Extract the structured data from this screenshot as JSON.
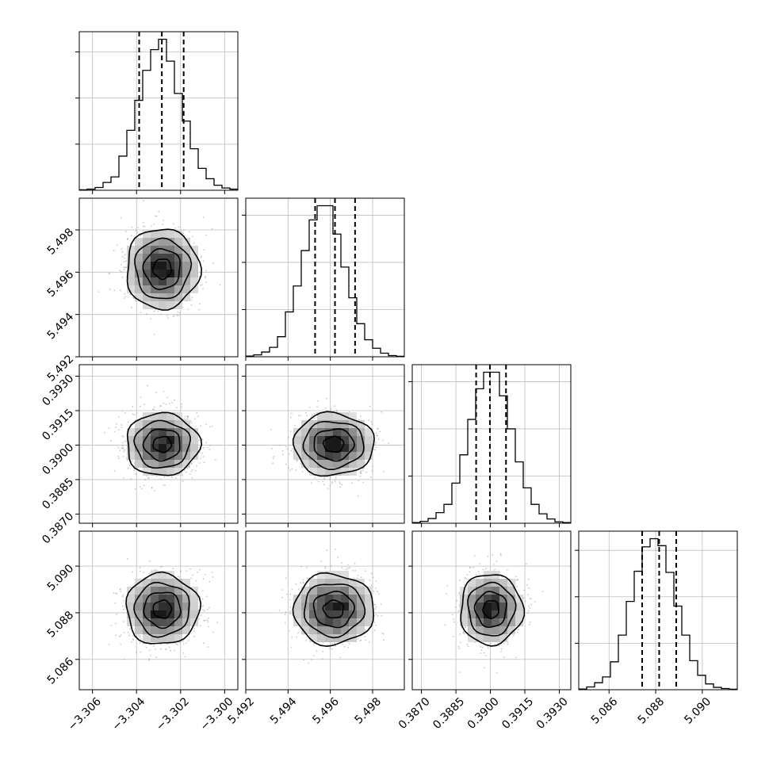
{
  "chart_data": {
    "type": "corner",
    "title": "",
    "parameters": [
      {
        "range": [
          -3.3066,
          -3.2994
        ],
        "ticks": [
          -3.306,
          -3.304,
          -3.302,
          -3.3
        ],
        "tick_labels": [
          "−3.306",
          "−3.304",
          "−3.302",
          "−3.300"
        ],
        "mean": -3.30283,
        "std": 0.00083,
        "quantiles": [
          -3.30388,
          -3.30285,
          -3.30186
        ]
      },
      {
        "range": [
          5.492,
          5.4995
        ],
        "ticks": [
          5.492,
          5.494,
          5.496,
          5.498
        ],
        "tick_labels": [
          "5.492",
          "5.494",
          "5.496",
          "5.498"
        ],
        "mean": 5.49616,
        "std": 0.00095,
        "quantiles": [
          5.49528,
          5.49622,
          5.49717
        ]
      },
      {
        "range": [
          0.3866,
          0.3935
        ],
        "ticks": [
          0.387,
          0.3885,
          0.39,
          0.3915,
          0.393
        ],
        "tick_labels": [
          "0.3870",
          "0.3885",
          "0.3900",
          "0.3915",
          "0.3930"
        ],
        "mean": 0.39003,
        "std": 0.00068,
        "quantiles": [
          0.38938,
          0.38998,
          0.39068
        ]
      },
      {
        "range": [
          5.0847,
          5.0915
        ],
        "ticks": [
          5.086,
          5.088,
          5.09
        ],
        "tick_labels": [
          "5.086",
          "5.088",
          "5.090"
        ],
        "mean": 5.08815,
        "std": 0.00076,
        "quantiles": [
          5.08742,
          5.08815,
          5.08888
        ]
      }
    ],
    "histograms": [
      {
        "param": 0,
        "counts": [
          2,
          5,
          12,
          34,
          58,
          148,
          260,
          390,
          520,
          610,
          655,
          560,
          420,
          300,
          180,
          95,
          50,
          22,
          10,
          5
        ]
      },
      {
        "param": 1,
        "counts": [
          3,
          8,
          20,
          40,
          85,
          190,
          300,
          450,
          580,
          640,
          640,
          520,
          380,
          250,
          140,
          72,
          36,
          15,
          5,
          2
        ]
      },
      {
        "param": 2,
        "counts": [
          3,
          8,
          20,
          45,
          80,
          170,
          290,
          440,
          570,
          640,
          640,
          540,
          400,
          260,
          150,
          80,
          40,
          18,
          6,
          3
        ]
      },
      {
        "param": 3,
        "counts": [
          3,
          12,
          30,
          55,
          120,
          235,
          380,
          510,
          615,
          650,
          620,
          505,
          360,
          235,
          125,
          62,
          25,
          10,
          5,
          2
        ]
      }
    ],
    "x_tick_labels_shown_for": [
      0,
      1,
      2,
      3
    ],
    "y_tick_labels_shown_for_rows": [
      1,
      2,
      3
    ],
    "contour_levels": 4,
    "grid": true,
    "legend": "none"
  }
}
